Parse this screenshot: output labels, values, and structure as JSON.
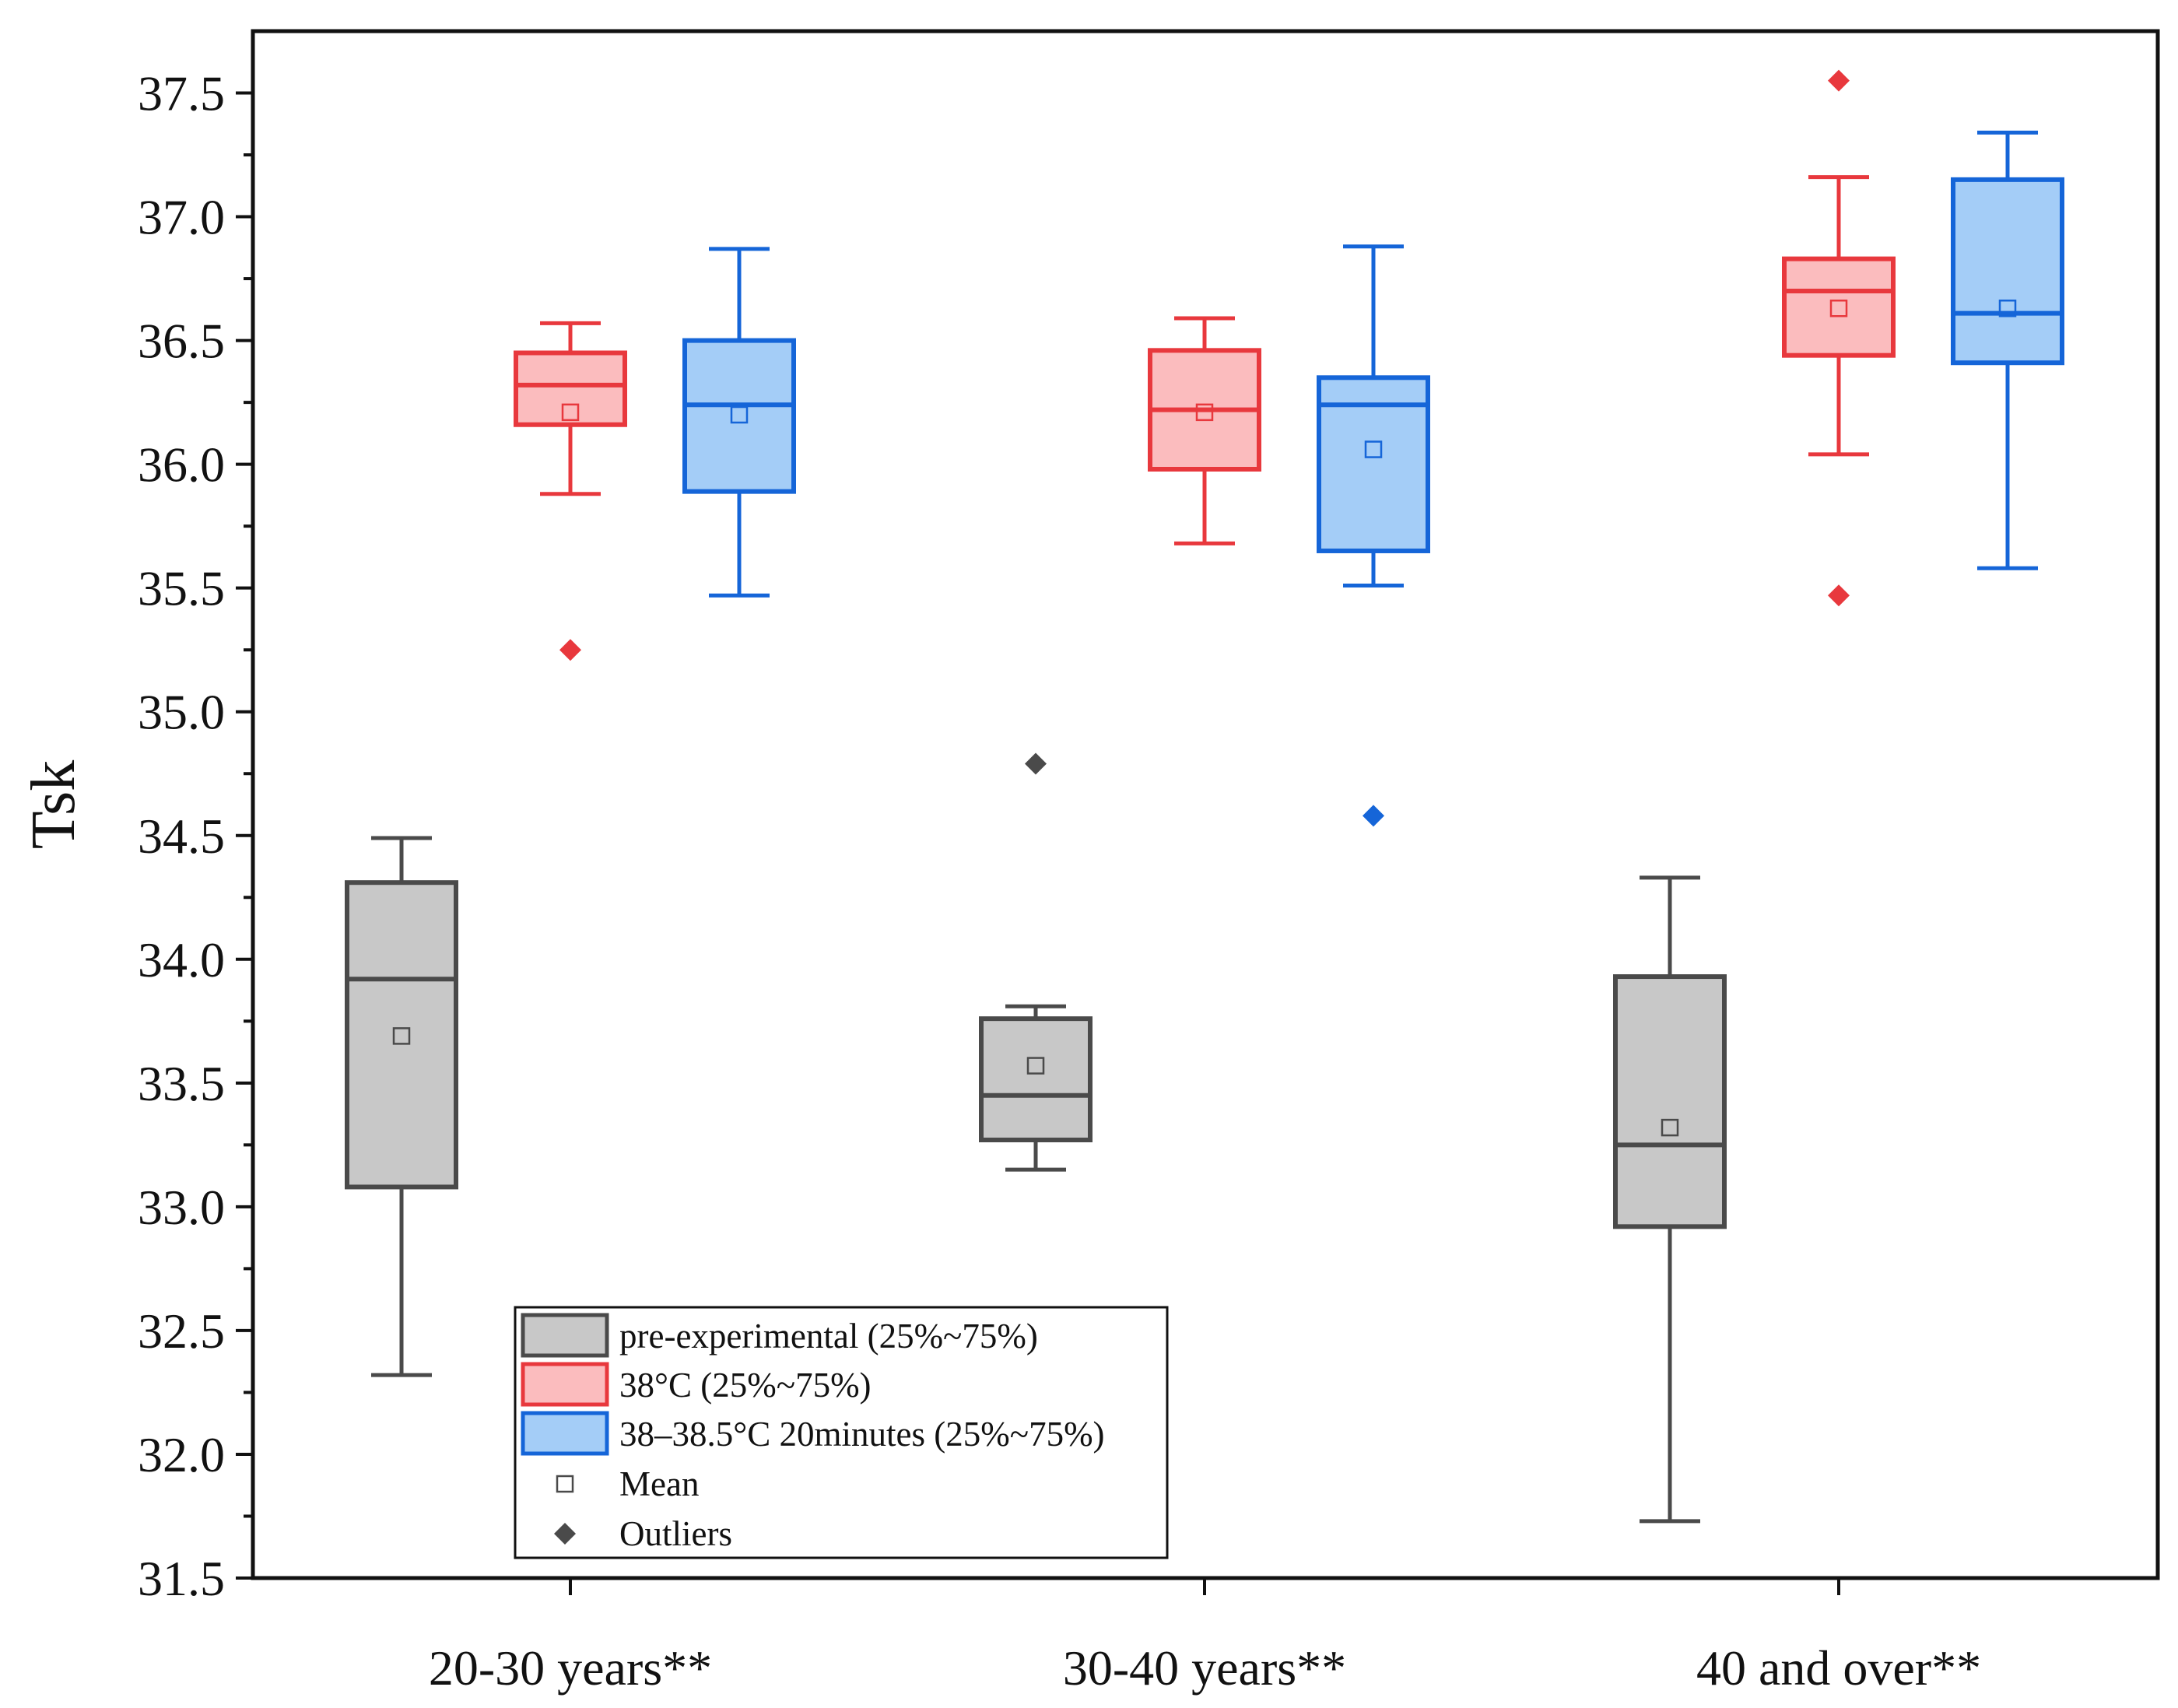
{
  "chart_data": {
    "type": "box",
    "title": "",
    "xlabel": "",
    "ylabel": "Tsk",
    "ylim": [
      31.5,
      37.75
    ],
    "yticks": [
      "31.5",
      "32.0",
      "32.5",
      "33.0",
      "33.5",
      "34.0",
      "34.5",
      "35.0",
      "35.5",
      "36.0",
      "36.5",
      "37.0",
      "37.5"
    ],
    "categories": [
      "20-30 years**",
      "30-40 years**",
      "40 and over**"
    ],
    "grid": false,
    "legend_position": "bottom-left",
    "series": [
      {
        "name": "pre-experimental (25%~75%)",
        "stroke": "#4a4a4a",
        "fill": "#c8c8c8",
        "boxes": [
          {
            "min": 32.32,
            "q1": 33.08,
            "median": 33.92,
            "q3": 34.31,
            "max": 34.49,
            "mean": 33.69,
            "outliers": []
          },
          {
            "min": 33.15,
            "q1": 33.27,
            "median": 33.45,
            "q3": 33.76,
            "max": 33.81,
            "mean": 33.57,
            "outliers": [
              34.79
            ]
          },
          {
            "min": 31.73,
            "q1": 32.92,
            "median": 33.25,
            "q3": 33.93,
            "max": 34.33,
            "mean": 33.32,
            "outliers": []
          }
        ]
      },
      {
        "name": "38°C (25%~75%)",
        "stroke": "#e8383d",
        "fill": "#fbbcbe",
        "boxes": [
          {
            "min": 35.88,
            "q1": 36.16,
            "median": 36.32,
            "q3": 36.45,
            "max": 36.57,
            "mean": 36.21,
            "outliers": [
              35.25
            ]
          },
          {
            "min": 35.68,
            "q1": 35.98,
            "median": 36.22,
            "q3": 36.46,
            "max": 36.59,
            "mean": 36.21,
            "outliers": []
          },
          {
            "min": 36.04,
            "q1": 36.44,
            "median": 36.7,
            "q3": 36.83,
            "max": 37.16,
            "mean": 36.63,
            "outliers": [
              35.47,
              37.55
            ]
          }
        ]
      },
      {
        "name": "38–38.5°C 20minutes (25%~75%)",
        "stroke": "#1565d8",
        "fill": "#a4cdf7",
        "boxes": [
          {
            "min": 35.47,
            "q1": 35.89,
            "median": 36.24,
            "q3": 36.5,
            "max": 36.87,
            "mean": 36.2,
            "outliers": []
          },
          {
            "min": 35.51,
            "q1": 35.65,
            "median": 36.24,
            "q3": 36.35,
            "max": 36.88,
            "mean": 36.06,
            "outliers": [
              34.58
            ]
          },
          {
            "min": 35.58,
            "q1": 36.41,
            "median": 36.61,
            "q3": 37.15,
            "max": 37.34,
            "mean": 36.63,
            "outliers": []
          }
        ]
      }
    ],
    "legend": {
      "entries": [
        {
          "label": "pre-experimental (25%~75%)",
          "kind": "box",
          "stroke": "#4a4a4a",
          "fill": "#c8c8c8"
        },
        {
          "label": "38°C (25%~75%)",
          "kind": "box",
          "stroke": "#e8383d",
          "fill": "#fbbcbe"
        },
        {
          "label": "38–38.5°C 20minutes (25%~75%)",
          "kind": "box",
          "stroke": "#1565d8",
          "fill": "#a4cdf7"
        },
        {
          "label": "Mean",
          "kind": "mean-marker"
        },
        {
          "label": "Outliers",
          "kind": "outlier-marker"
        }
      ]
    }
  }
}
